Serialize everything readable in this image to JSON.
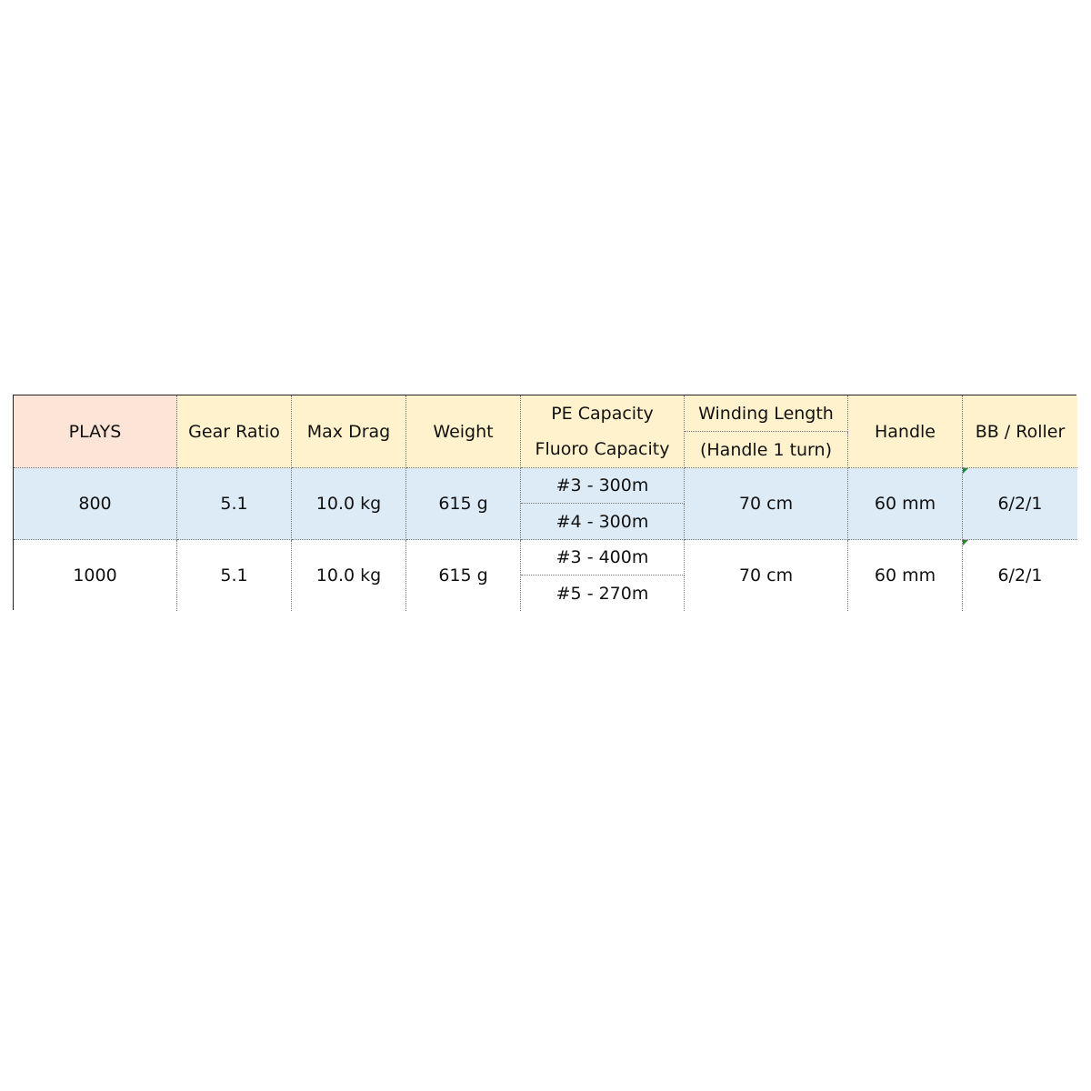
{
  "table": {
    "headers": {
      "model": "PLAYS",
      "gear_ratio": "Gear Ratio",
      "max_drag": "Max Drag",
      "weight": "Weight",
      "pe_capacity": "PE Capacity",
      "fluoro_capacity": "Fluoro Capacity",
      "winding_length": "Winding Length",
      "winding_length_sub": "(Handle 1 turn)",
      "handle": "Handle",
      "bb_roller": "BB / Roller"
    },
    "rows": [
      {
        "model": "800",
        "gear_ratio": "5.1",
        "max_drag": "10.0 kg",
        "weight": "615 g",
        "pe": "#3 - 300m",
        "fluoro": "#4 - 300m",
        "winding": "70 cm",
        "handle": "60 mm",
        "bb": "6/2/1"
      },
      {
        "model": "1000",
        "gear_ratio": "5.1",
        "max_drag": "10.0 kg",
        "weight": "615 g",
        "pe": "#3 - 400m",
        "fluoro": "#5 - 270m",
        "winding": "70 cm",
        "handle": "60 mm",
        "bb": "6/2/1"
      }
    ]
  },
  "colors": {
    "header_model": "#fce4d6",
    "header": "#fff2cc",
    "row_alt": "#ddebf7",
    "comment_marker": "#1e8a2e"
  }
}
